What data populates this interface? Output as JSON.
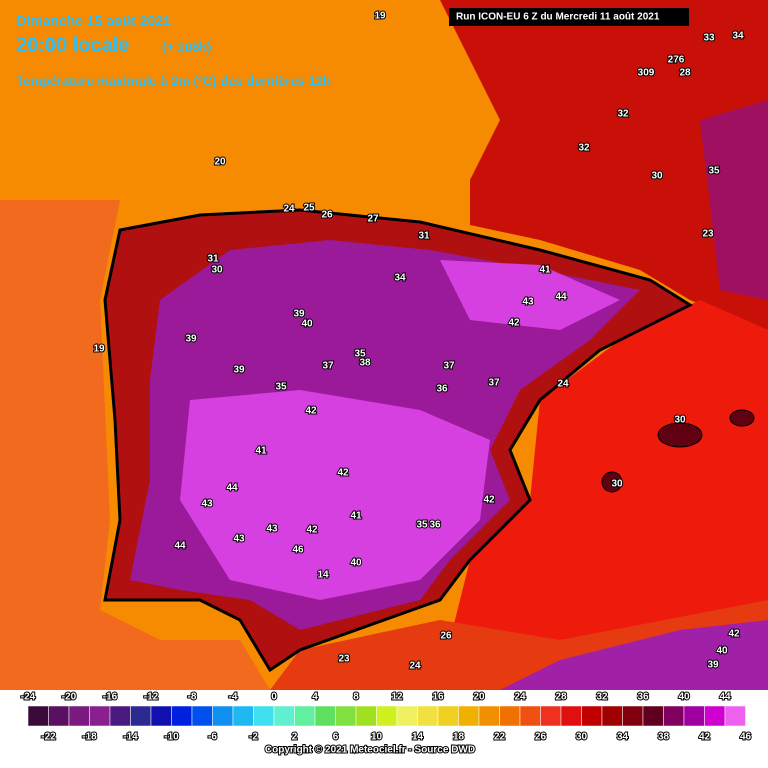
{
  "header": {
    "date": "Dimanche 15 août 2021",
    "time": "20:00 locale",
    "lead": "(+ 108h)",
    "subtitle": "Température maximale à 2m (°C) des dernières 12h"
  },
  "run": "Run ICON-EU 6 Z du Mercredi 11 août 2021",
  "map_labels": [
    "19",
    "33",
    "34",
    "309",
    "276",
    "28",
    "32",
    "32",
    "30",
    "35",
    "20",
    "24",
    "25",
    "26",
    "27",
    "31",
    "23",
    "31",
    "30",
    "34",
    "41",
    "44",
    "43",
    "42",
    "39",
    "40",
    "39",
    "19",
    "39",
    "35",
    "38",
    "37",
    "37",
    "37",
    "36",
    "35",
    "42",
    "41",
    "42",
    "44",
    "43",
    "41",
    "42",
    "43",
    "42",
    "35",
    "43",
    "44",
    "46",
    "40",
    "14",
    "26",
    "23",
    "24",
    "39",
    "40",
    "42",
    "30",
    "30",
    "24",
    "36"
  ],
  "colorbar": {
    "top": [
      -24,
      -20,
      -16,
      -12,
      -8,
      -4,
      0,
      4,
      8,
      12,
      16,
      20,
      24,
      28,
      32,
      36,
      40,
      44
    ],
    "bottom": [
      -22,
      -18,
      -14,
      -10,
      -6,
      -2,
      2,
      6,
      10,
      14,
      18,
      22,
      26,
      30,
      34,
      38,
      42,
      46
    ]
  },
  "credit": "Copyright © 2021 Meteociel.fr - Source DWD"
}
